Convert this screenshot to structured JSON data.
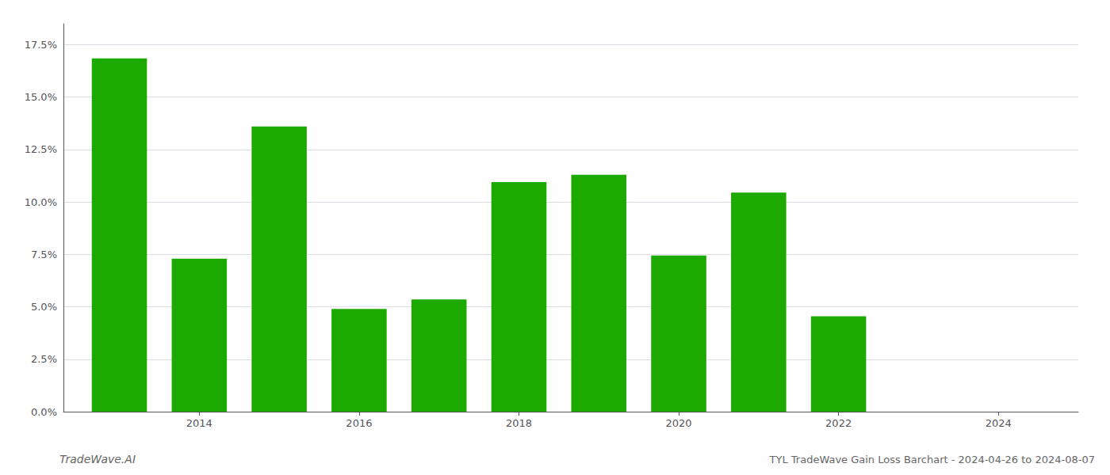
{
  "chart_data": {
    "type": "bar",
    "title": "TYL TradeWave Gain Loss Barchart - 2024-04-26 to 2024-08-07",
    "annotations": [
      {
        "text": "TradeWave.AI"
      }
    ],
    "x": [
      2013,
      2014,
      2015,
      2016,
      2017,
      2018,
      2019,
      2020,
      2021,
      2022,
      2023
    ],
    "values": [
      0.1685,
      0.073,
      0.136,
      0.049,
      0.0535,
      0.1095,
      0.113,
      0.0745,
      0.1045,
      0.0455,
      0.0
    ],
    "color": "#1daa00",
    "xlim": [
      2012.3,
      2025.0
    ],
    "xticks": [
      2014,
      2016,
      2018,
      2020,
      2022,
      2024
    ],
    "ylim": [
      0.0,
      0.185
    ],
    "yticks": [
      {
        "value": 0.0,
        "label": "0.0%"
      },
      {
        "value": 0.025,
        "label": "2.5%"
      },
      {
        "value": 0.05,
        "label": "5.0%"
      },
      {
        "value": 0.075,
        "label": "7.5%"
      },
      {
        "value": 0.1,
        "label": "10.0%"
      },
      {
        "value": 0.125,
        "label": "12.5%"
      },
      {
        "value": 0.15,
        "label": "15.0%"
      },
      {
        "value": 0.175,
        "label": "17.5%"
      }
    ],
    "grid": true
  }
}
